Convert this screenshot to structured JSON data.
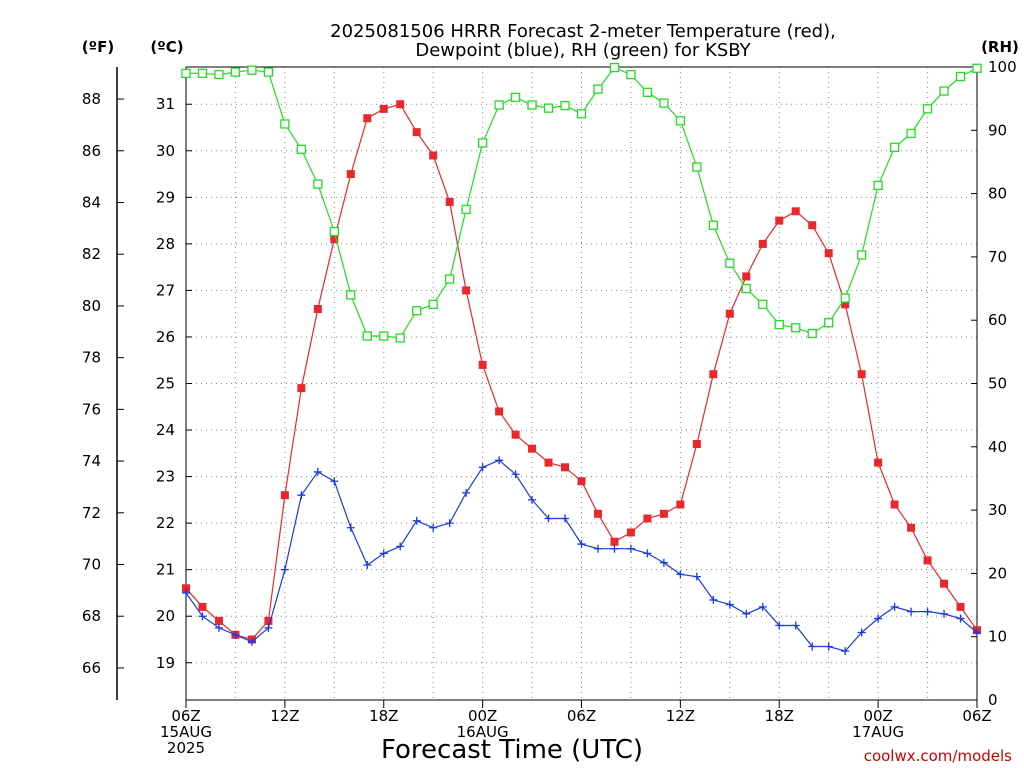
{
  "title_line1": "2025081506 HRRR Forecast 2-meter Temperature (red),",
  "title_line2": "Dewpoint (blue), RH (green) for KSBY",
  "credit": "coolwx.com/models",
  "credit_color": "#cc0000",
  "chart_data": {
    "type": "line",
    "title": "2025081506 HRRR Forecast 2-meter Temperature (red), Dewpoint (blue), RH (green) for KSBY",
    "xlabel": "Forecast Time (UTC)",
    "x_start": "2025-08-15 06Z",
    "x_step_hours": 1,
    "x_ticks": [
      {
        "hour": 0,
        "lines": [
          "06Z",
          "15AUG",
          "2025"
        ]
      },
      {
        "hour": 6,
        "lines": [
          "12Z"
        ]
      },
      {
        "hour": 12,
        "lines": [
          "18Z"
        ]
      },
      {
        "hour": 18,
        "lines": [
          "00Z",
          "16AUG"
        ]
      },
      {
        "hour": 24,
        "lines": [
          "06Z"
        ]
      },
      {
        "hour": 30,
        "lines": [
          "12Z"
        ]
      },
      {
        "hour": 36,
        "lines": [
          "18Z"
        ]
      },
      {
        "hour": 42,
        "lines": [
          "00Z",
          "17AUG"
        ]
      },
      {
        "hour": 48,
        "lines": [
          "06Z"
        ]
      }
    ],
    "xlim": [
      0,
      48
    ],
    "axes": {
      "fahrenheit": {
        "label": "(ºF)",
        "ticks": [
          66,
          68,
          70,
          72,
          74,
          76,
          78,
          80,
          82,
          84,
          86,
          88
        ]
      },
      "celsius": {
        "label": "(ºC)",
        "ticks": [
          19,
          20,
          21,
          22,
          23,
          24,
          25,
          26,
          27,
          28,
          29,
          30,
          31
        ],
        "ylim": [
          18.2,
          31.8
        ]
      },
      "rh": {
        "label": "(RH)",
        "ticks": [
          0,
          10,
          20,
          30,
          40,
          50,
          60,
          70,
          80,
          90,
          100
        ],
        "ylim": [
          0,
          100
        ]
      }
    },
    "grid": true,
    "series": [
      {
        "name": "2-meter Temperature",
        "color": "#e8282c",
        "marker": "filled-square",
        "axis": "celsius",
        "values": [
          20.6,
          20.2,
          19.9,
          19.6,
          19.5,
          19.9,
          22.6,
          24.9,
          26.6,
          28.1,
          29.5,
          30.7,
          30.9,
          31.0,
          30.4,
          29.9,
          28.9,
          27.0,
          25.4,
          24.4,
          23.9,
          23.6,
          23.3,
          23.2,
          22.9,
          22.2,
          21.6,
          21.8,
          22.1,
          22.2,
          22.4,
          23.7,
          25.2,
          26.5,
          27.3,
          28.0,
          28.5,
          28.7,
          28.4,
          27.8,
          26.7,
          25.2,
          23.3,
          22.4,
          21.9,
          21.2,
          20.7,
          20.2,
          19.7
        ]
      },
      {
        "name": "Dewpoint",
        "color": "#1a3ae0",
        "marker": "plus",
        "axis": "celsius",
        "values": [
          20.5,
          20.0,
          19.75,
          19.6,
          19.45,
          19.75,
          21.0,
          22.6,
          23.1,
          22.9,
          21.9,
          21.1,
          21.35,
          21.5,
          22.05,
          21.9,
          22.0,
          22.65,
          23.2,
          23.35,
          23.05,
          22.5,
          22.1,
          22.1,
          21.55,
          21.45,
          21.45,
          21.45,
          21.35,
          21.15,
          20.9,
          20.85,
          20.35,
          20.25,
          20.05,
          20.2,
          19.8,
          19.8,
          19.35,
          19.35,
          19.25,
          19.65,
          19.95,
          20.2,
          20.1,
          20.1,
          20.05,
          19.95,
          19.65
        ]
      },
      {
        "name": "RH",
        "color": "#22dd22",
        "marker": "open-square",
        "axis": "rh",
        "values": [
          99,
          99,
          98.8,
          99.2,
          99.5,
          99.2,
          91,
          87,
          81.5,
          74,
          64,
          57.5,
          57.5,
          57.2,
          61.5,
          62.5,
          66.5,
          77.5,
          88,
          94,
          95.2,
          94,
          93.5,
          93.9,
          92.6,
          96.5,
          99.9,
          98.8,
          96,
          94.3,
          91.5,
          84.2,
          75,
          69,
          65,
          62.5,
          59.3,
          58.8,
          57.9,
          59.6,
          63.5,
          70.3,
          81.3,
          87.3,
          89.5,
          93.4,
          96.2,
          98.5,
          99.8
        ]
      }
    ]
  }
}
